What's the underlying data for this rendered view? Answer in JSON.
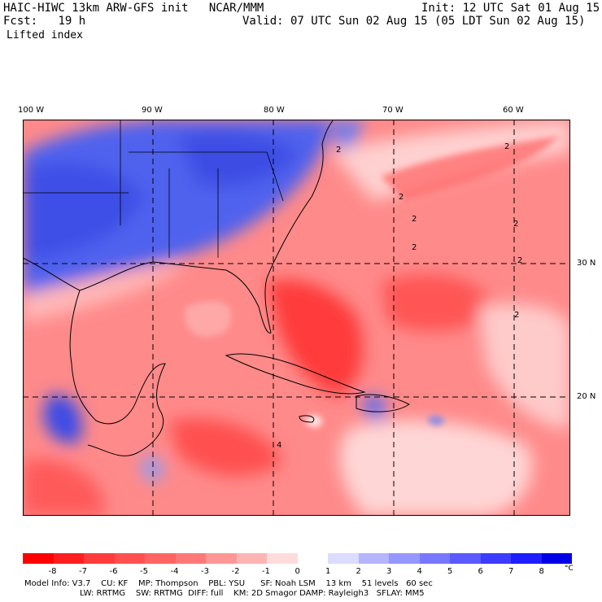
{
  "header": {
    "model": "HAIC-HIWC 13km ARW-GFS init",
    "org": "NCAR/MMM",
    "init": "Init: 12 UTC Sat 01 Aug 15",
    "fcst_label": "Fcst:",
    "fcst_value": "19 h",
    "valid": "Valid: 07 UTC Sun 02 Aug 15 (05 LDT Sun 02 Aug 15)",
    "variable": "Lifted index"
  },
  "axes": {
    "lon_labels": [
      "100 W",
      "90 W",
      "80 W",
      "70 W",
      "60 W"
    ],
    "lat_labels": [
      "30 N",
      "20 N"
    ]
  },
  "colorbar": {
    "labels": [
      "-8",
      "-7",
      "-6",
      "-5",
      "-4",
      "-3",
      "-2",
      "-1",
      "0",
      "1",
      "2",
      "3",
      "4",
      "5",
      "6",
      "7",
      "8"
    ],
    "unit": "°C",
    "colors": [
      "#ff0000",
      "#ff1e1e",
      "#ff3c3c",
      "#ff5050",
      "#ff6464",
      "#ff7878",
      "#ff9696",
      "#ffb4b4",
      "#ffdcdc",
      "#ffffff",
      "#dcdcff",
      "#b4b4ff",
      "#9696ff",
      "#7878ff",
      "#5a5aff",
      "#3c3cff",
      "#1e1eff",
      "#0000e6"
    ]
  },
  "contour_labels": [
    "2",
    "2",
    "2",
    "2",
    "2",
    "2",
    "2",
    "4",
    "2"
  ],
  "footer": {
    "line1": "Model Info: V3.7    CU: KF    MP: Thompson    PBL: YSU      SF: Noah LSM    13 km    51 levels   60 sec",
    "line2": "LW: RRTMG    SW: RRTMG  DIFF: full    KM: 2D Smagor DAMP: Rayleigh3   SFLAY: MM5"
  },
  "colors": {
    "neg": "#ff5a5a",
    "pos": "#4a5cf0"
  }
}
